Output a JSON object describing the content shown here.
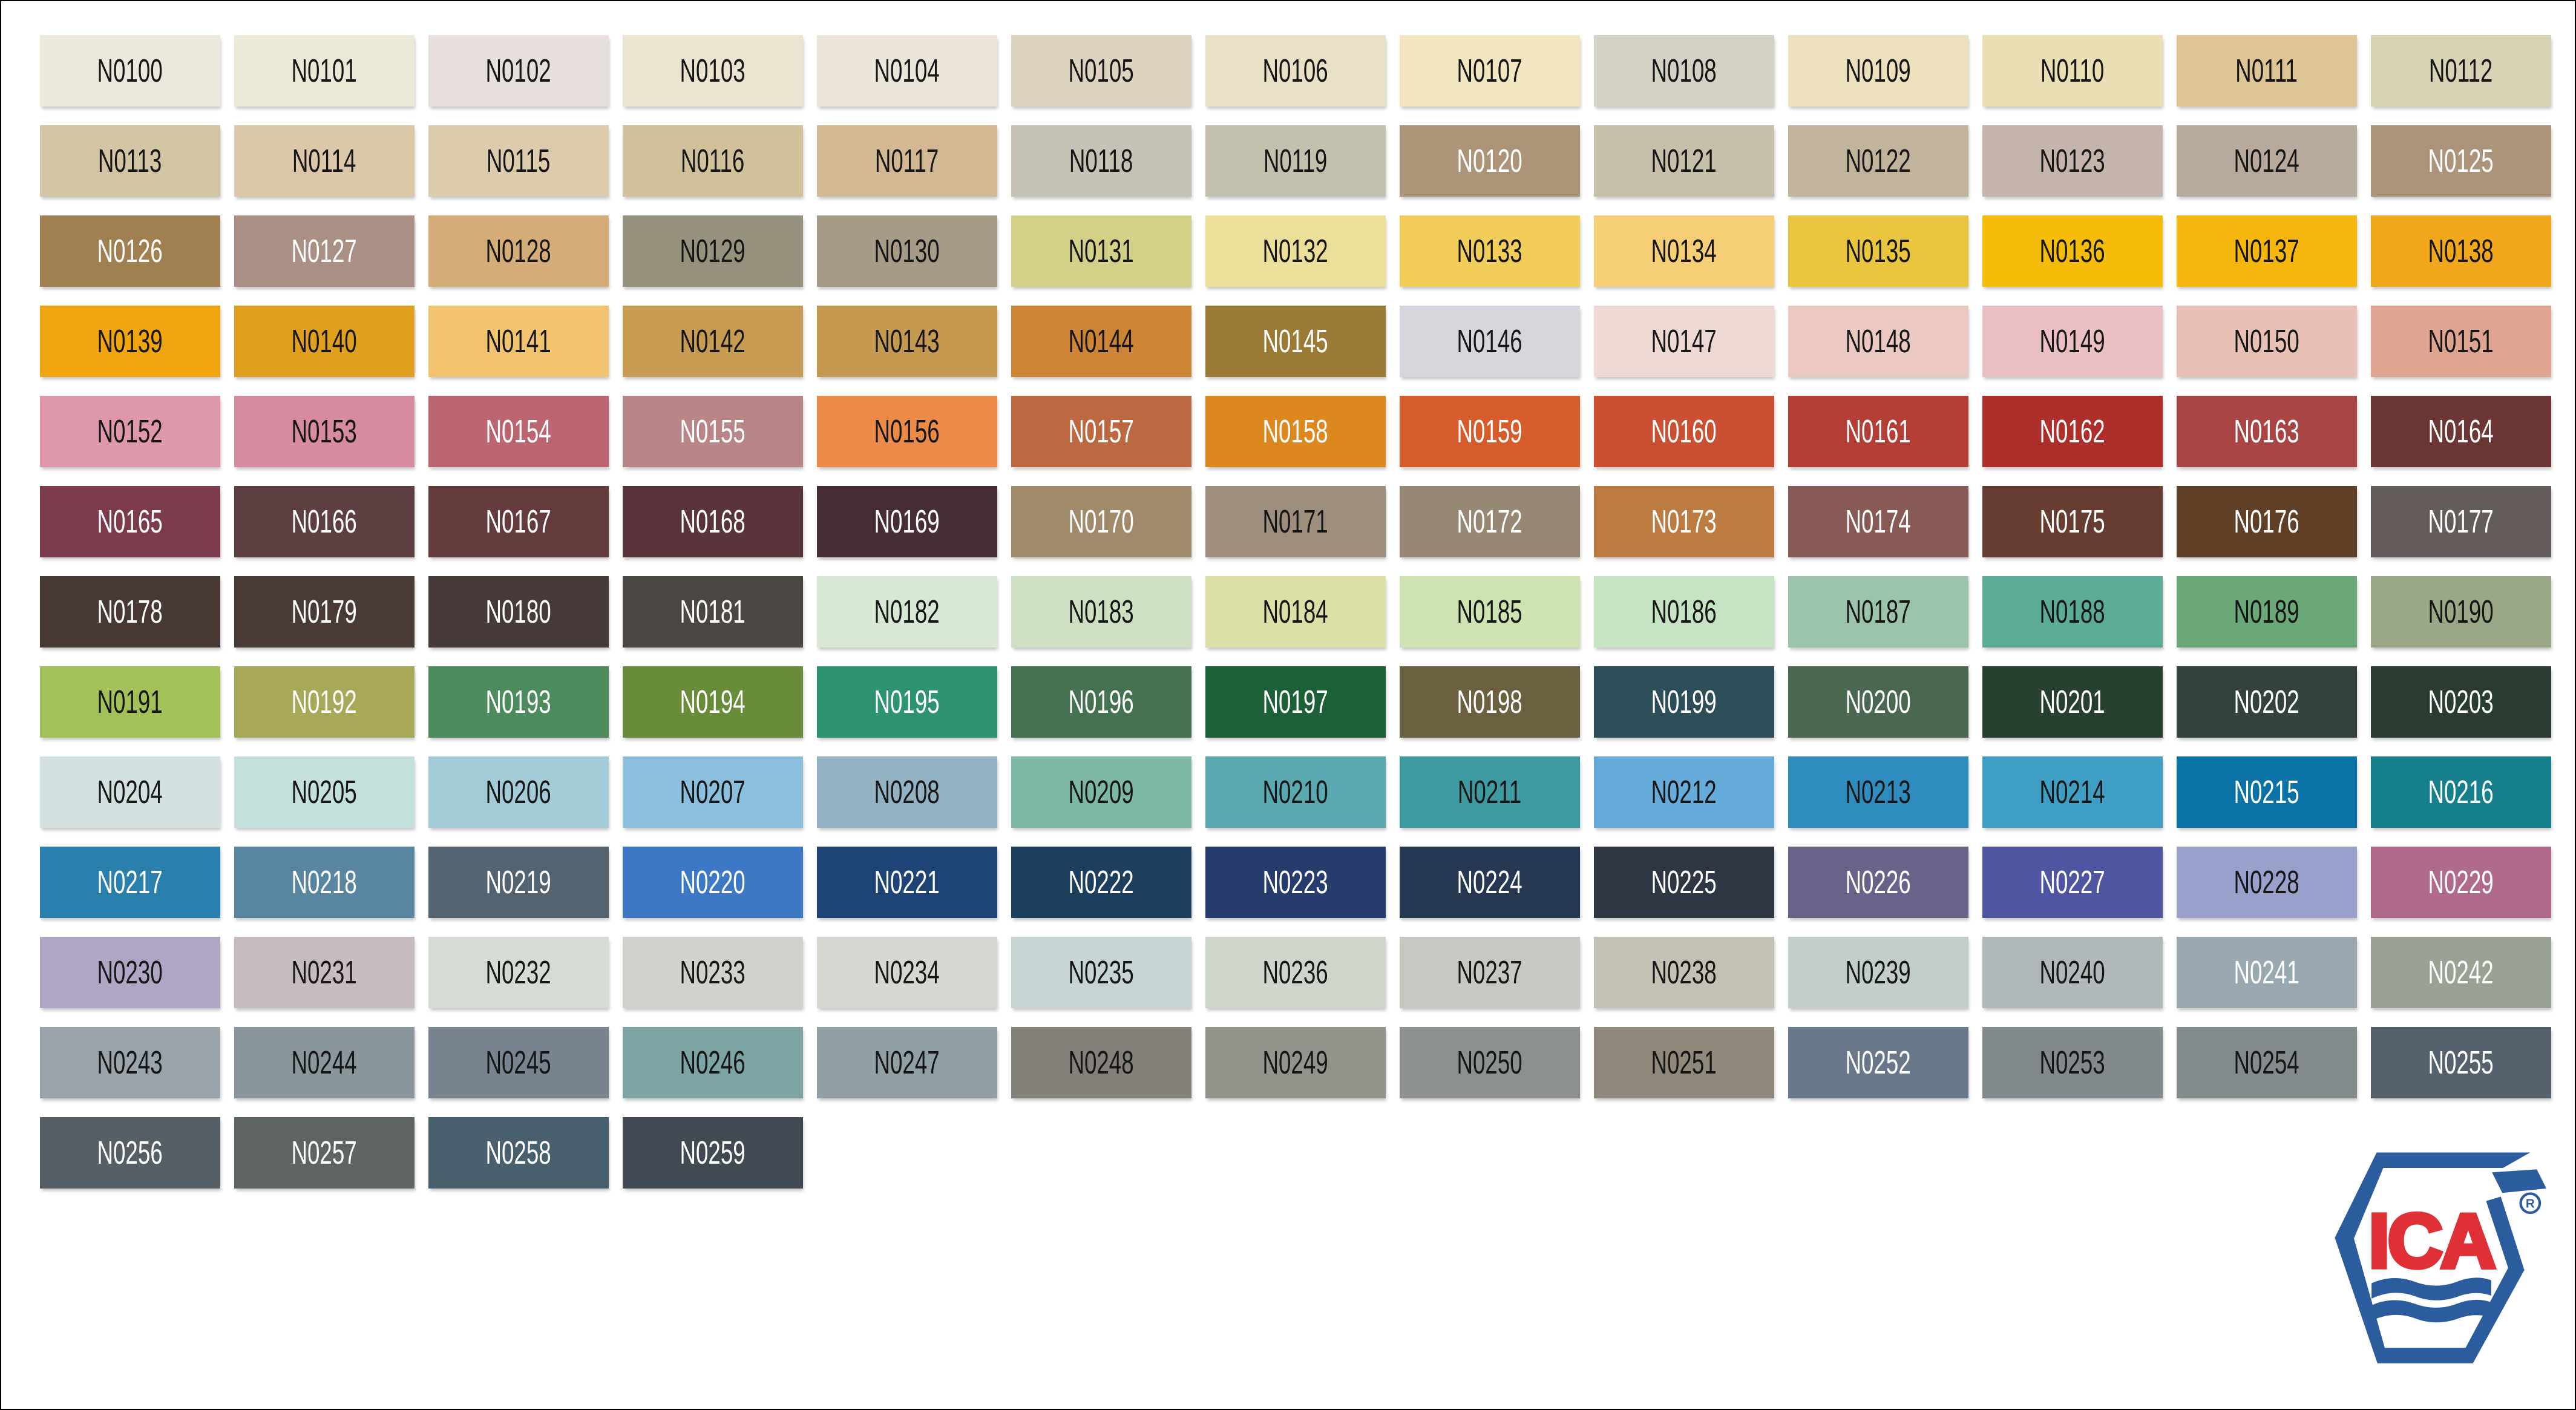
{
  "logo": {
    "text": "ICA",
    "registered_mark": "R",
    "blue": "#2b5c9e",
    "red": "#df3036"
  },
  "chart_data": {
    "type": "table",
    "title": "ICA color swatch chart N0100-N0259",
    "columns": 13,
    "rows": 13,
    "swatches": [
      {
        "label": "N0100",
        "color": "#ece9dc",
        "text": "dark"
      },
      {
        "label": "N0101",
        "color": "#ebe9d6",
        "text": "dark"
      },
      {
        "label": "N0102",
        "color": "#e7dfdc",
        "text": "dark"
      },
      {
        "label": "N0103",
        "color": "#ebe4d0",
        "text": "dark"
      },
      {
        "label": "N0104",
        "color": "#ece6da",
        "text": "dark"
      },
      {
        "label": "N0105",
        "color": "#ddd4c0",
        "text": "dark"
      },
      {
        "label": "N0106",
        "color": "#e9e1c6",
        "text": "dark"
      },
      {
        "label": "N0107",
        "color": "#f2e6c1",
        "text": "dark"
      },
      {
        "label": "N0108",
        "color": "#d3d2c4",
        "text": "dark"
      },
      {
        "label": "N0109",
        "color": "#ece0bd",
        "text": "dark"
      },
      {
        "label": "N0110",
        "color": "#eadfb4",
        "text": "dark"
      },
      {
        "label": "N0111",
        "color": "#ddc596",
        "text": "dark"
      },
      {
        "label": "N0112",
        "color": "#d8d3b4",
        "text": "dark"
      },
      {
        "label": "N0113",
        "color": "#d3c5a4",
        "text": "dark"
      },
      {
        "label": "N0114",
        "color": "#ddc7a9",
        "text": "dark"
      },
      {
        "label": "N0115",
        "color": "#dccbad",
        "text": "dark"
      },
      {
        "label": "N0116",
        "color": "#d0c19a",
        "text": "dark"
      },
      {
        "label": "N0117",
        "color": "#d3b993",
        "text": "dark"
      },
      {
        "label": "N0118",
        "color": "#c6c2b5",
        "text": "dark"
      },
      {
        "label": "N0119",
        "color": "#c4c0ae",
        "text": "dark"
      },
      {
        "label": "N0120",
        "color": "#ac9479",
        "text": "light"
      },
      {
        "label": "N0121",
        "color": "#c6bfa9",
        "text": "dark"
      },
      {
        "label": "N0122",
        "color": "#c2b49c",
        "text": "dark"
      },
      {
        "label": "N0123",
        "color": "#c4b4ac",
        "text": "dark"
      },
      {
        "label": "N0124",
        "color": "#b7aa9c",
        "text": "dark"
      },
      {
        "label": "N0125",
        "color": "#ab9479",
        "text": "light"
      },
      {
        "label": "N0126",
        "color": "#a08050",
        "text": "light"
      },
      {
        "label": "N0127",
        "color": "#aa9084",
        "text": "light"
      },
      {
        "label": "N0128",
        "color": "#d3ac78",
        "text": "dark"
      },
      {
        "label": "N0129",
        "color": "#96917d",
        "text": "dark"
      },
      {
        "label": "N0130",
        "color": "#a59b87",
        "text": "dark"
      },
      {
        "label": "N0131",
        "color": "#d3d187",
        "text": "dark"
      },
      {
        "label": "N0132",
        "color": "#ecdf9a",
        "text": "dark"
      },
      {
        "label": "N0133",
        "color": "#f3cd59",
        "text": "dark"
      },
      {
        "label": "N0134",
        "color": "#f6ce76",
        "text": "dark"
      },
      {
        "label": "N0135",
        "color": "#e9c63e",
        "text": "dark"
      },
      {
        "label": "N0136",
        "color": "#f5bd09",
        "text": "dark"
      },
      {
        "label": "N0137",
        "color": "#f5b70d",
        "text": "dark"
      },
      {
        "label": "N0138",
        "color": "#f2a81d",
        "text": "dark"
      },
      {
        "label": "N0139",
        "color": "#f0a40d",
        "text": "dark"
      },
      {
        "label": "N0140",
        "color": "#e09f1c",
        "text": "dark"
      },
      {
        "label": "N0141",
        "color": "#f3c470",
        "text": "dark"
      },
      {
        "label": "N0142",
        "color": "#c79b52",
        "text": "dark"
      },
      {
        "label": "N0143",
        "color": "#c69950",
        "text": "dark"
      },
      {
        "label": "N0144",
        "color": "#cd8434",
        "text": "dark"
      },
      {
        "label": "N0145",
        "color": "#9a7a34",
        "text": "light"
      },
      {
        "label": "N0146",
        "color": "#d8d6dc",
        "text": "dark"
      },
      {
        "label": "N0147",
        "color": "#efd9d4",
        "text": "dark"
      },
      {
        "label": "N0148",
        "color": "#ecc8c2",
        "text": "dark"
      },
      {
        "label": "N0149",
        "color": "#ebc0c4",
        "text": "dark"
      },
      {
        "label": "N0150",
        "color": "#e8c0b4",
        "text": "dark"
      },
      {
        "label": "N0151",
        "color": "#e0a591",
        "text": "dark"
      },
      {
        "label": "N0152",
        "color": "#df97ab",
        "text": "dark"
      },
      {
        "label": "N0153",
        "color": "#d68ba0",
        "text": "dark"
      },
      {
        "label": "N0154",
        "color": "#bb6571",
        "text": "light"
      },
      {
        "label": "N0155",
        "color": "#b98687",
        "text": "light"
      },
      {
        "label": "N0156",
        "color": "#ec8b48",
        "text": "dark"
      },
      {
        "label": "N0157",
        "color": "#bc6840",
        "text": "light"
      },
      {
        "label": "N0158",
        "color": "#dd871f",
        "text": "light"
      },
      {
        "label": "N0159",
        "color": "#d75c2c",
        "text": "light"
      },
      {
        "label": "N0160",
        "color": "#ca4f33",
        "text": "light"
      },
      {
        "label": "N0161",
        "color": "#b43d35",
        "text": "light"
      },
      {
        "label": "N0162",
        "color": "#ac2f2c",
        "text": "light"
      },
      {
        "label": "N0163",
        "color": "#a94545",
        "text": "light"
      },
      {
        "label": "N0164",
        "color": "#6b3634",
        "text": "light"
      },
      {
        "label": "N0165",
        "color": "#7c3a4d",
        "text": "light"
      },
      {
        "label": "N0166",
        "color": "#5d3f42",
        "text": "light"
      },
      {
        "label": "N0167",
        "color": "#643b3d",
        "text": "light"
      },
      {
        "label": "N0168",
        "color": "#59343a",
        "text": "light"
      },
      {
        "label": "N0169",
        "color": "#462c33",
        "text": "light"
      },
      {
        "label": "N0170",
        "color": "#a18a6a",
        "text": "light"
      },
      {
        "label": "N0171",
        "color": "#9d8e7e",
        "text": "dark"
      },
      {
        "label": "N0172",
        "color": "#978876",
        "text": "light"
      },
      {
        "label": "N0173",
        "color": "#bc7b41",
        "text": "light"
      },
      {
        "label": "N0174",
        "color": "#885a56",
        "text": "light"
      },
      {
        "label": "N0175",
        "color": "#663b30",
        "text": "light"
      },
      {
        "label": "N0176",
        "color": "#5f4026",
        "text": "light"
      },
      {
        "label": "N0177",
        "color": "#645c5a",
        "text": "light"
      },
      {
        "label": "N0178",
        "color": "#473834",
        "text": "light"
      },
      {
        "label": "N0179",
        "color": "#493a36",
        "text": "light"
      },
      {
        "label": "N0180",
        "color": "#463a38",
        "text": "light"
      },
      {
        "label": "N0181",
        "color": "#4a4642",
        "text": "light"
      },
      {
        "label": "N0182",
        "color": "#d8e8d4",
        "text": "dark"
      },
      {
        "label": "N0183",
        "color": "#cfe0c2",
        "text": "dark"
      },
      {
        "label": "N0184",
        "color": "#dde0a6",
        "text": "dark"
      },
      {
        "label": "N0185",
        "color": "#cfe2b2",
        "text": "dark"
      },
      {
        "label": "N0186",
        "color": "#c6e3c4",
        "text": "dark"
      },
      {
        "label": "N0187",
        "color": "#9cc4ac",
        "text": "dark"
      },
      {
        "label": "N0188",
        "color": "#5bab96",
        "text": "dark"
      },
      {
        "label": "N0189",
        "color": "#6aa878",
        "text": "dark"
      },
      {
        "label": "N0190",
        "color": "#9aa888",
        "text": "dark"
      },
      {
        "label": "N0191",
        "color": "#a2c159",
        "text": "dark"
      },
      {
        "label": "N0192",
        "color": "#a8a859",
        "text": "light"
      },
      {
        "label": "N0193",
        "color": "#4c8c5c",
        "text": "light"
      },
      {
        "label": "N0194",
        "color": "#688c38",
        "text": "light"
      },
      {
        "label": "N0195",
        "color": "#2e9470",
        "text": "light"
      },
      {
        "label": "N0196",
        "color": "#447250",
        "text": "light"
      },
      {
        "label": "N0197",
        "color": "#1c6038",
        "text": "light"
      },
      {
        "label": "N0198",
        "color": "#6b6141",
        "text": "light"
      },
      {
        "label": "N0199",
        "color": "#2d4e58",
        "text": "light"
      },
      {
        "label": "N0200",
        "color": "#49684f",
        "text": "light"
      },
      {
        "label": "N0201",
        "color": "#273f2e",
        "text": "light"
      },
      {
        "label": "N0202",
        "color": "#33433c",
        "text": "light"
      },
      {
        "label": "N0203",
        "color": "#2a3b31",
        "text": "light"
      },
      {
        "label": "N0204",
        "color": "#d3e2e0",
        "text": "dark"
      },
      {
        "label": "N0205",
        "color": "#c4e0dc",
        "text": "dark"
      },
      {
        "label": "N0206",
        "color": "#a3cbd8",
        "text": "dark"
      },
      {
        "label": "N0207",
        "color": "#8cbede",
        "text": "dark"
      },
      {
        "label": "N0208",
        "color": "#92b2c4",
        "text": "dark"
      },
      {
        "label": "N0209",
        "color": "#7cb8a4",
        "text": "dark"
      },
      {
        "label": "N0210",
        "color": "#5aa9b0",
        "text": "dark"
      },
      {
        "label": "N0211",
        "color": "#3d9aa0",
        "text": "dark"
      },
      {
        "label": "N0212",
        "color": "#66acda",
        "text": "dark"
      },
      {
        "label": "N0213",
        "color": "#2e8cbe",
        "text": "dark"
      },
      {
        "label": "N0214",
        "color": "#3e9ec4",
        "text": "dark"
      },
      {
        "label": "N0215",
        "color": "#0a72a4",
        "text": "light"
      },
      {
        "label": "N0216",
        "color": "#15808c",
        "text": "light"
      },
      {
        "label": "N0217",
        "color": "#2980ac",
        "text": "light"
      },
      {
        "label": "N0218",
        "color": "#5886a0",
        "text": "light"
      },
      {
        "label": "N0219",
        "color": "#536470",
        "text": "light"
      },
      {
        "label": "N0220",
        "color": "#3c78c4",
        "text": "light"
      },
      {
        "label": "N0221",
        "color": "#1d4474",
        "text": "light"
      },
      {
        "label": "N0222",
        "color": "#1d3f5e",
        "text": "light"
      },
      {
        "label": "N0223",
        "color": "#263c6c",
        "text": "light"
      },
      {
        "label": "N0224",
        "color": "#263752",
        "text": "light"
      },
      {
        "label": "N0225",
        "color": "#2d3642",
        "text": "light"
      },
      {
        "label": "N0226",
        "color": "#6a6288",
        "text": "light"
      },
      {
        "label": "N0227",
        "color": "#4f55a0",
        "text": "light"
      },
      {
        "label": "N0228",
        "color": "#9aa0cc",
        "text": "dark"
      },
      {
        "label": "N0229",
        "color": "#b06a8c",
        "text": "light"
      },
      {
        "label": "N0230",
        "color": "#aea6c4",
        "text": "dark"
      },
      {
        "label": "N0231",
        "color": "#c6bcc0",
        "text": "dark"
      },
      {
        "label": "N0232",
        "color": "#d6dcd4",
        "text": "dark"
      },
      {
        "label": "N0233",
        "color": "#d2d2cc",
        "text": "dark"
      },
      {
        "label": "N0234",
        "color": "#d4d8d0",
        "text": "dark"
      },
      {
        "label": "N0235",
        "color": "#c6d4d4",
        "text": "dark"
      },
      {
        "label": "N0236",
        "color": "#ced6cc",
        "text": "dark"
      },
      {
        "label": "N0237",
        "color": "#c6c8c2",
        "text": "dark"
      },
      {
        "label": "N0238",
        "color": "#c3c0b4",
        "text": "dark"
      },
      {
        "label": "N0239",
        "color": "#c2cdcc",
        "text": "dark"
      },
      {
        "label": "N0240",
        "color": "#b0b8ba",
        "text": "dark"
      },
      {
        "label": "N0241",
        "color": "#9aa8b2",
        "text": "light"
      },
      {
        "label": "N0242",
        "color": "#9aa296",
        "text": "light"
      },
      {
        "label": "N0243",
        "color": "#9aa4aa",
        "text": "dark"
      },
      {
        "label": "N0244",
        "color": "#8b959c",
        "text": "dark"
      },
      {
        "label": "N0245",
        "color": "#79838f",
        "text": "dark"
      },
      {
        "label": "N0246",
        "color": "#7ba4a2",
        "text": "dark"
      },
      {
        "label": "N0247",
        "color": "#91a0a5",
        "text": "dark"
      },
      {
        "label": "N0248",
        "color": "#84817a",
        "text": "dark"
      },
      {
        "label": "N0249",
        "color": "#90948a",
        "text": "dark"
      },
      {
        "label": "N0250",
        "color": "#8c9190",
        "text": "dark"
      },
      {
        "label": "N0251",
        "color": "#90887a",
        "text": "dark"
      },
      {
        "label": "N0252",
        "color": "#68778a",
        "text": "light"
      },
      {
        "label": "N0253",
        "color": "#82898c",
        "text": "dark"
      },
      {
        "label": "N0254",
        "color": "#828a8c",
        "text": "dark"
      },
      {
        "label": "N0255",
        "color": "#55626e",
        "text": "light"
      },
      {
        "label": "N0256",
        "color": "#575f66",
        "text": "light"
      },
      {
        "label": "N0257",
        "color": "#5d6462",
        "text": "light"
      },
      {
        "label": "N0258",
        "color": "#48606e",
        "text": "light"
      },
      {
        "label": "N0259",
        "color": "#414a52",
        "text": "light"
      }
    ]
  }
}
